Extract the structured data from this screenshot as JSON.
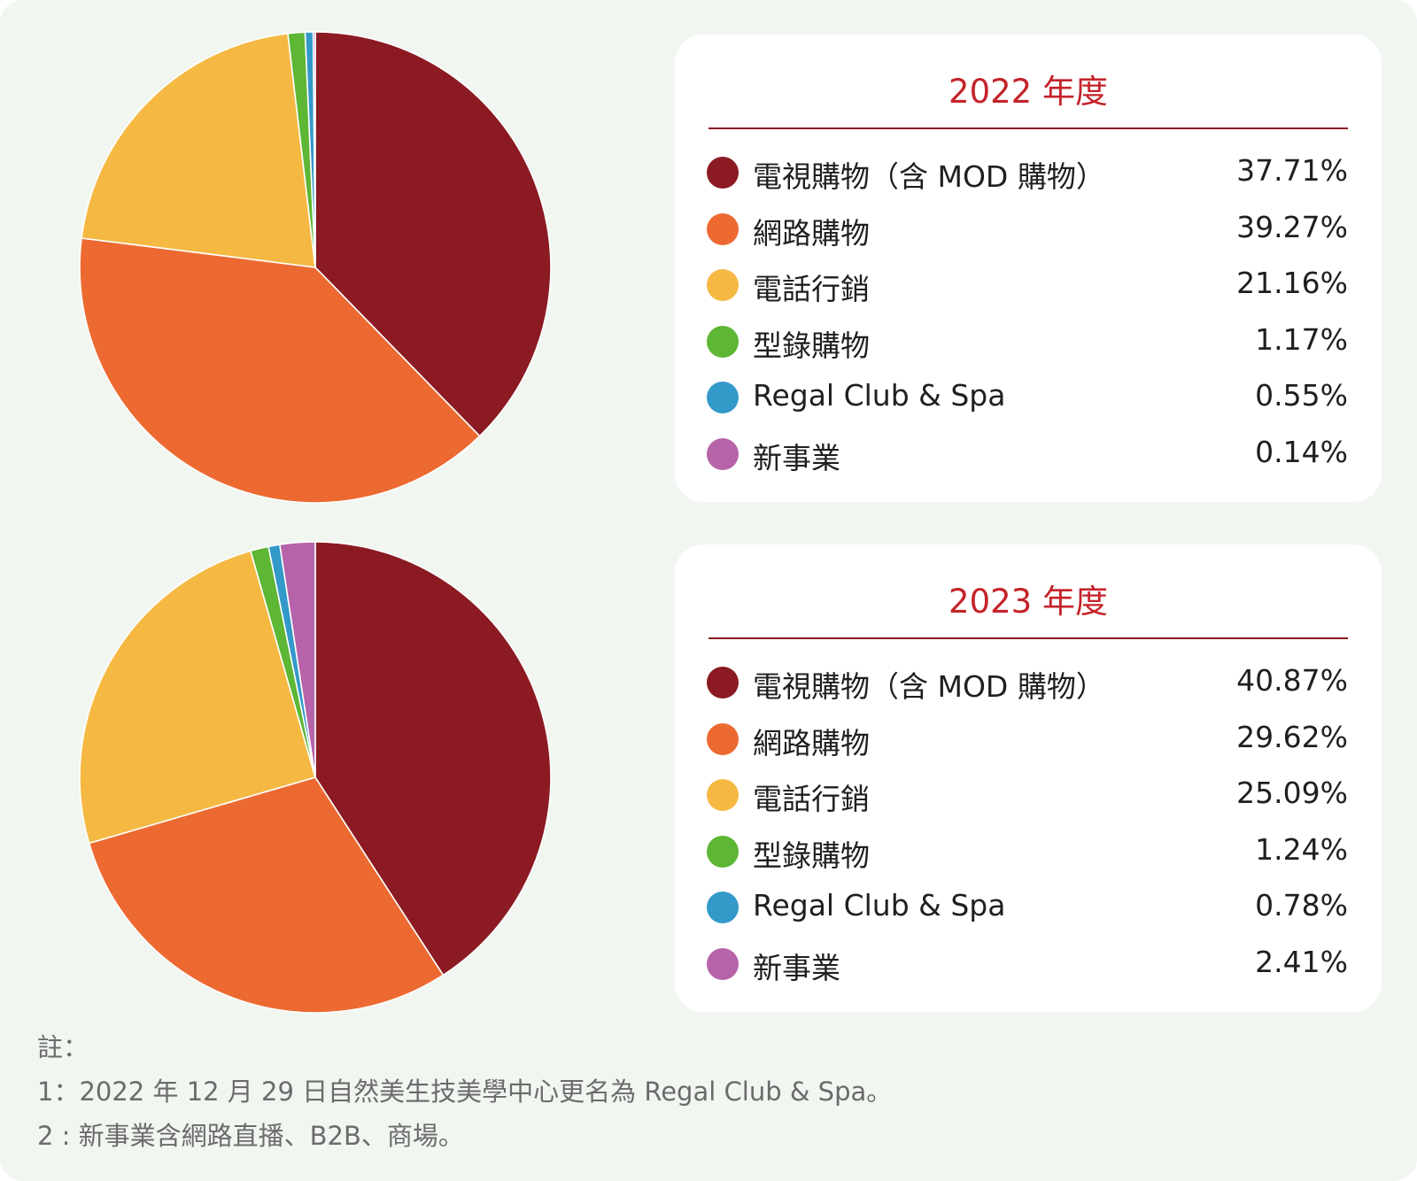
{
  "colors": {
    "title": "#c4232a",
    "rule": "#8b1a22",
    "text": "#1f1f1f",
    "note": "#6b6b6b",
    "background": "#f1f6f1",
    "card": "#ffffff"
  },
  "chart_data": [
    {
      "type": "pie",
      "title": "2022 年度",
      "categories": [
        "電視購物（含 MOD 購物）",
        "網路購物",
        "電話行銷",
        "型錄購物",
        "Regal Club & Spa",
        "新事業"
      ],
      "values": [
        37.71,
        39.27,
        21.16,
        1.17,
        0.55,
        0.14
      ],
      "value_labels": [
        "37.71%",
        "39.27%",
        "21.16%",
        "1.17%",
        "0.55%",
        "0.14%"
      ],
      "colors": [
        "#8b1a22",
        "#ec6a31",
        "#f5b943",
        "#5db634",
        "#3399c9",
        "#b663a9"
      ],
      "start": "top, clockwise",
      "legend": "right"
    },
    {
      "type": "pie",
      "title": "2023 年度",
      "categories": [
        "電視購物（含 MOD 購物）",
        "網路購物",
        "電話行銷",
        "型錄購物",
        "Regal Club & Spa",
        "新事業"
      ],
      "values": [
        40.87,
        29.62,
        25.09,
        1.24,
        0.78,
        2.41
      ],
      "value_labels": [
        "40.87%",
        "29.62%",
        "25.09%",
        "1.24%",
        "0.78%",
        "2.41%"
      ],
      "colors": [
        "#8b1a22",
        "#ec6a31",
        "#f5b943",
        "#5db634",
        "#3399c9",
        "#b663a9"
      ],
      "start": "top, clockwise",
      "legend": "right"
    }
  ],
  "notes": {
    "heading": "註：",
    "line1": "1：2022 年 12 月 29 日自然美生技美學中心更名為 Regal Club & Spa。",
    "line2": "2 : 新事業含網路直播、B2B、商場。"
  }
}
